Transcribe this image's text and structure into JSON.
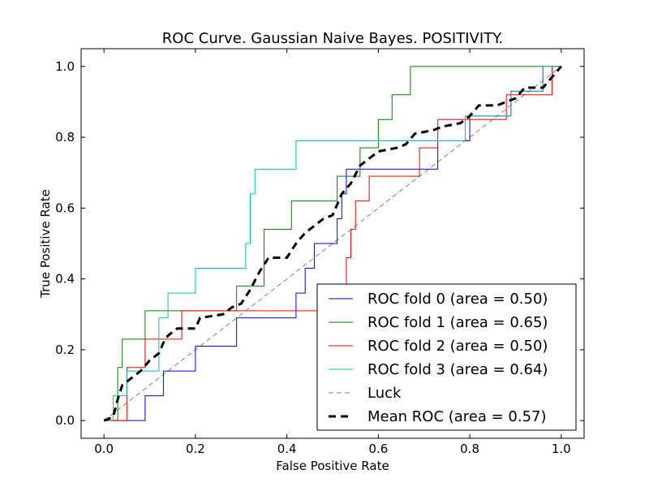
{
  "chart_data": {
    "type": "line",
    "title": "ROC Curve. Gaussian Naive Bayes. POSITIVITY.",
    "xlabel": "False Positive Rate",
    "ylabel": "True Positive Rate",
    "xlim": [
      -0.05,
      1.05
    ],
    "ylim": [
      -0.05,
      1.05
    ],
    "xticks": [
      "0.0",
      "0.2",
      "0.4",
      "0.6",
      "0.8",
      "1.0"
    ],
    "yticks": [
      "0.0",
      "0.2",
      "0.4",
      "0.6",
      "0.8",
      "1.0"
    ],
    "grid": false,
    "legend_position": "bottom-right",
    "series": [
      {
        "name": "ROC fold 0 (area = 0.50)",
        "color": "#0000ff",
        "style": "solid",
        "points": [
          [
            0,
            0
          ],
          [
            0.09,
            0
          ],
          [
            0.09,
            0.07
          ],
          [
            0.13,
            0.07
          ],
          [
            0.13,
            0.14
          ],
          [
            0.2,
            0.14
          ],
          [
            0.2,
            0.21
          ],
          [
            0.29,
            0.21
          ],
          [
            0.29,
            0.29
          ],
          [
            0.42,
            0.29
          ],
          [
            0.42,
            0.36
          ],
          [
            0.44,
            0.36
          ],
          [
            0.44,
            0.43
          ],
          [
            0.46,
            0.43
          ],
          [
            0.46,
            0.5
          ],
          [
            0.51,
            0.5
          ],
          [
            0.51,
            0.57
          ],
          [
            0.52,
            0.57
          ],
          [
            0.52,
            0.64
          ],
          [
            0.53,
            0.64
          ],
          [
            0.53,
            0.71
          ],
          [
            0.73,
            0.71
          ],
          [
            0.73,
            0.79
          ],
          [
            0.8,
            0.79
          ],
          [
            0.8,
            0.86
          ],
          [
            0.89,
            0.86
          ],
          [
            0.89,
            0.93
          ],
          [
            0.96,
            0.93
          ],
          [
            0.96,
            1.0
          ],
          [
            1.0,
            1.0
          ]
        ]
      },
      {
        "name": "ROC fold 1 (area = 0.65)",
        "color": "#008000",
        "style": "solid",
        "points": [
          [
            0,
            0
          ],
          [
            0.03,
            0
          ],
          [
            0.03,
            0.08
          ],
          [
            0.03,
            0.15
          ],
          [
            0.04,
            0.15
          ],
          [
            0.04,
            0.23
          ],
          [
            0.09,
            0.23
          ],
          [
            0.09,
            0.31
          ],
          [
            0.29,
            0.31
          ],
          [
            0.29,
            0.38
          ],
          [
            0.35,
            0.38
          ],
          [
            0.35,
            0.54
          ],
          [
            0.41,
            0.54
          ],
          [
            0.41,
            0.62
          ],
          [
            0.51,
            0.62
          ],
          [
            0.51,
            0.69
          ],
          [
            0.56,
            0.69
          ],
          [
            0.56,
            0.77
          ],
          [
            0.6,
            0.77
          ],
          [
            0.6,
            0.85
          ],
          [
            0.63,
            0.85
          ],
          [
            0.63,
            0.92
          ],
          [
            0.67,
            0.92
          ],
          [
            0.67,
            1.0
          ],
          [
            1.0,
            1.0
          ]
        ]
      },
      {
        "name": "ROC fold 2 (area = 0.50)",
        "color": "#ff0000",
        "style": "solid",
        "points": [
          [
            0,
            0
          ],
          [
            0.05,
            0
          ],
          [
            0.05,
            0.15
          ],
          [
            0.09,
            0.15
          ],
          [
            0.09,
            0.23
          ],
          [
            0.17,
            0.23
          ],
          [
            0.17,
            0.31
          ],
          [
            0.53,
            0.31
          ],
          [
            0.53,
            0.38
          ],
          [
            0.53,
            0.46
          ],
          [
            0.54,
            0.46
          ],
          [
            0.54,
            0.54
          ],
          [
            0.55,
            0.54
          ],
          [
            0.55,
            0.62
          ],
          [
            0.58,
            0.62
          ],
          [
            0.58,
            0.69
          ],
          [
            0.69,
            0.69
          ],
          [
            0.69,
            0.77
          ],
          [
            0.73,
            0.77
          ],
          [
            0.73,
            0.85
          ],
          [
            0.88,
            0.85
          ],
          [
            0.88,
            0.92
          ],
          [
            0.98,
            0.92
          ],
          [
            0.98,
            1.0
          ],
          [
            1.0,
            1.0
          ]
        ]
      },
      {
        "name": "ROC fold 3 (area = 0.64)",
        "color": "#00bfbf",
        "style": "solid",
        "points": [
          [
            0,
            0
          ],
          [
            0.02,
            0
          ],
          [
            0.02,
            0.07
          ],
          [
            0.05,
            0.07
          ],
          [
            0.05,
            0.14
          ],
          [
            0.12,
            0.14
          ],
          [
            0.12,
            0.29
          ],
          [
            0.14,
            0.29
          ],
          [
            0.14,
            0.36
          ],
          [
            0.2,
            0.36
          ],
          [
            0.2,
            0.43
          ],
          [
            0.31,
            0.43
          ],
          [
            0.31,
            0.5
          ],
          [
            0.32,
            0.5
          ],
          [
            0.32,
            0.64
          ],
          [
            0.33,
            0.64
          ],
          [
            0.33,
            0.71
          ],
          [
            0.42,
            0.71
          ],
          [
            0.42,
            0.79
          ],
          [
            0.79,
            0.79
          ],
          [
            0.79,
            0.86
          ],
          [
            0.89,
            0.86
          ],
          [
            0.89,
            0.93
          ],
          [
            0.96,
            0.93
          ],
          [
            0.96,
            1.0
          ],
          [
            1.0,
            1.0
          ]
        ]
      },
      {
        "name": "Luck",
        "color": "#808080",
        "style": "dashed-thin",
        "points": [
          [
            0,
            0
          ],
          [
            1,
            1
          ]
        ]
      },
      {
        "name": "Mean ROC (area = 0.57)",
        "color": "#000000",
        "style": "dashed-thick",
        "points": [
          [
            0,
            0
          ],
          [
            0.02,
            0.01
          ],
          [
            0.03,
            0.06
          ],
          [
            0.04,
            0.1
          ],
          [
            0.06,
            0.12
          ],
          [
            0.08,
            0.14
          ],
          [
            0.1,
            0.17
          ],
          [
            0.12,
            0.19
          ],
          [
            0.13,
            0.22
          ],
          [
            0.14,
            0.24
          ],
          [
            0.16,
            0.26
          ],
          [
            0.2,
            0.26
          ],
          [
            0.21,
            0.29
          ],
          [
            0.26,
            0.3
          ],
          [
            0.28,
            0.32
          ],
          [
            0.3,
            0.33
          ],
          [
            0.32,
            0.37
          ],
          [
            0.34,
            0.42
          ],
          [
            0.36,
            0.46
          ],
          [
            0.4,
            0.46
          ],
          [
            0.42,
            0.5
          ],
          [
            0.44,
            0.53
          ],
          [
            0.46,
            0.55
          ],
          [
            0.48,
            0.57
          ],
          [
            0.5,
            0.58
          ],
          [
            0.52,
            0.64
          ],
          [
            0.54,
            0.67
          ],
          [
            0.56,
            0.72
          ],
          [
            0.6,
            0.76
          ],
          [
            0.64,
            0.77
          ],
          [
            0.66,
            0.78
          ],
          [
            0.68,
            0.81
          ],
          [
            0.72,
            0.82
          ],
          [
            0.74,
            0.83
          ],
          [
            0.78,
            0.84
          ],
          [
            0.8,
            0.86
          ],
          [
            0.82,
            0.89
          ],
          [
            0.86,
            0.89
          ],
          [
            0.88,
            0.9
          ],
          [
            0.9,
            0.91
          ],
          [
            0.92,
            0.94
          ],
          [
            0.96,
            0.94
          ],
          [
            1.0,
            1.0
          ]
        ]
      }
    ]
  }
}
